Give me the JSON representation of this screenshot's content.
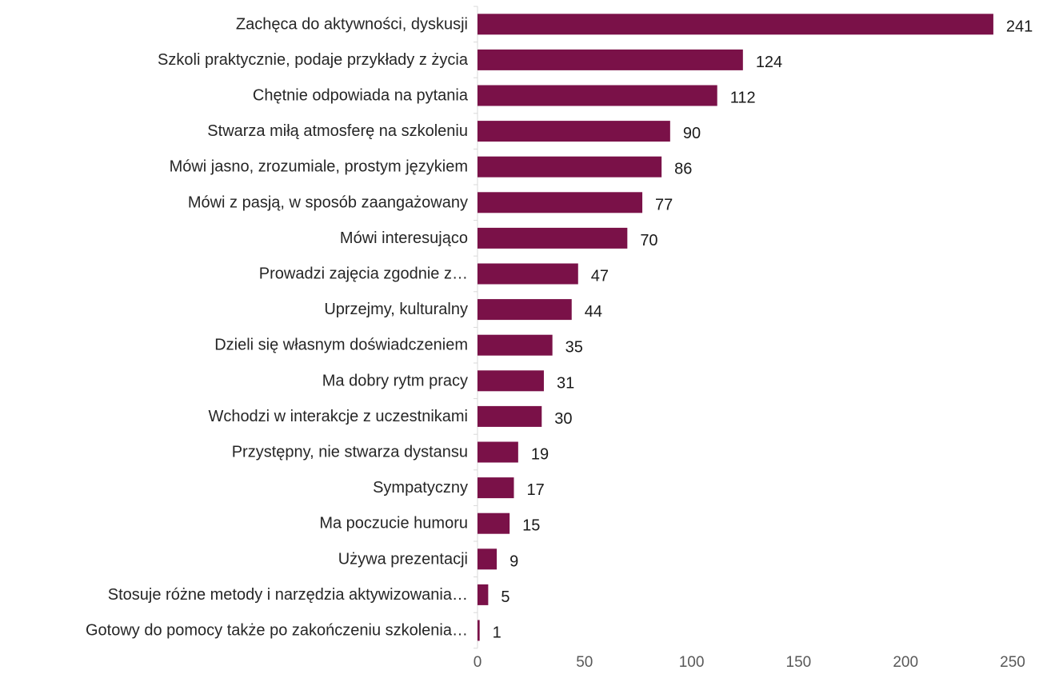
{
  "chart_data": {
    "type": "bar",
    "orientation": "horizontal",
    "title": "",
    "xlabel": "",
    "ylabel": "",
    "xlim": [
      0,
      250
    ],
    "x_ticks": [
      0,
      50,
      100,
      150,
      200,
      250
    ],
    "grid": false,
    "legend": "none",
    "bar_color": "#7A1148",
    "categories": [
      "Zachęca do aktywności, dyskusji",
      "Szkoli praktycznie, podaje przykłady z życia",
      "Chętnie odpowiada na pytania",
      "Stwarza miłą atmosferę na szkoleniu",
      "Mówi jasno, zrozumiale, prostym językiem",
      "Mówi z pasją, w sposób zaangażowany",
      "Mówi interesująco",
      "Prowadzi zajęcia zgodnie z…",
      "Uprzejmy, kulturalny",
      "Dzieli się własnym doświadczeniem",
      "Ma dobry rytm pracy",
      "Wchodzi w interakcje z uczestnikami",
      "Przystępny, nie stwarza dystansu",
      "Sympatyczny",
      "Ma poczucie humoru",
      "Używa prezentacji",
      "Stosuje różne metody i narzędzia aktywizowania…",
      "Gotowy do pomocy także po zakończeniu szkolenia…"
    ],
    "values": [
      241,
      124,
      112,
      90,
      86,
      77,
      70,
      47,
      44,
      35,
      31,
      30,
      19,
      17,
      15,
      9,
      5,
      1
    ]
  }
}
